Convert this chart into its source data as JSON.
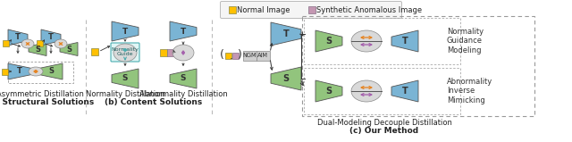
{
  "fig_width": 6.4,
  "fig_height": 1.59,
  "dpi": 100,
  "bg_color": "#ffffff",
  "T_color": "#7ab4d4",
  "S_color": "#92c47d",
  "yellow_color": "#ffc000",
  "pink_color": "#c497b2",
  "arrow_color": "#333333",
  "orange_color": "#e6821e",
  "purple_color": "#a45dac",
  "ellipse_color": "#d9d9d9",
  "teal_color": "#4badb0",
  "ngm_color": "#d0d0d0",
  "legend_normal": "Normal Image",
  "legend_synthetic": "Synthetic Anomalous Image",
  "label_a": "(a) Structural Solutions",
  "label_b": "(b) Content Solutions",
  "label_c": "(c) Our Method",
  "sub_a": "Asymmetric Distillation",
  "sub_b1": "Normality Distillation",
  "sub_b2": "Abnormality Distillation",
  "sub_c": "Dual-Modeling Decouple Distillation",
  "text_ng": "Normality\nGuidance\nModeling",
  "text_aim": "Abnormality\nInverse\nMimicking",
  "text_ngm": "NGM",
  "text_aim_box": "AIM",
  "text_ng_guide": "Normality\nGuide"
}
